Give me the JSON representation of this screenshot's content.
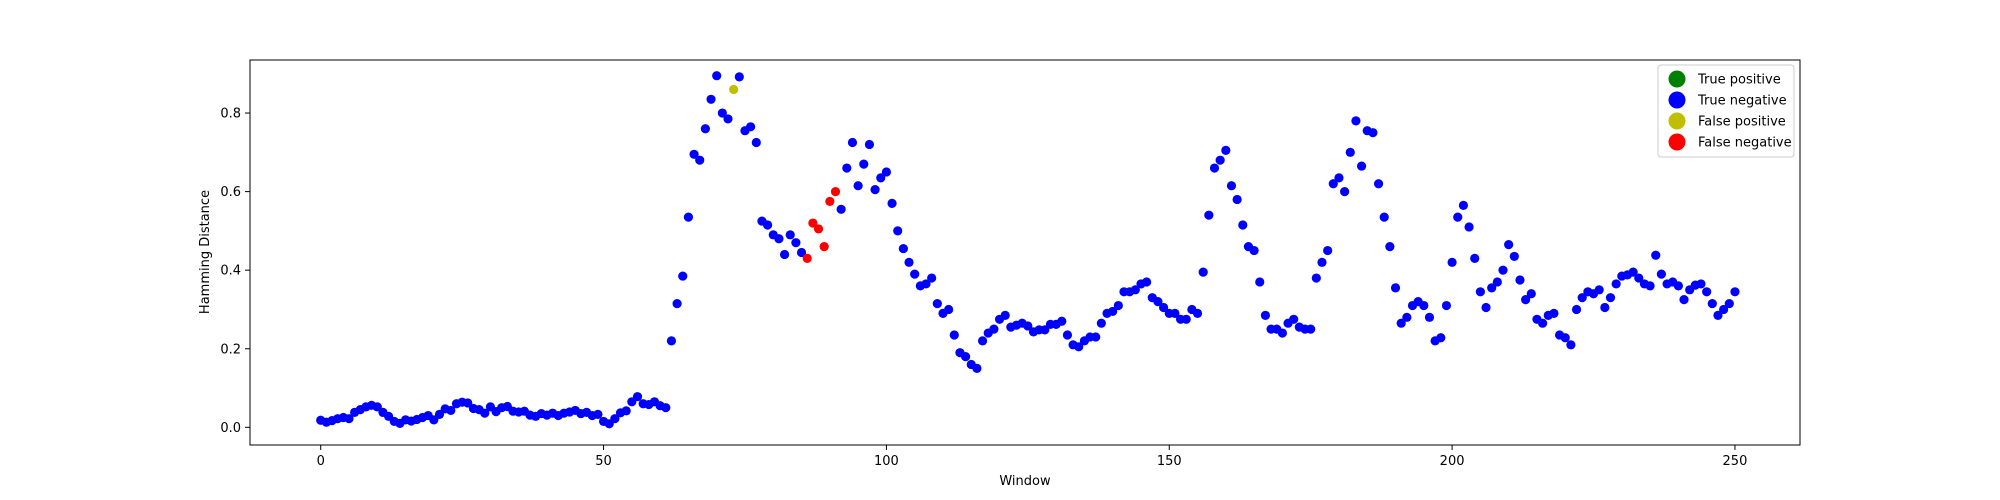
{
  "chart_data": {
    "type": "scatter",
    "title": "",
    "xlabel": "Window",
    "ylabel": "Hamming Distance",
    "xlim": [
      -12.5,
      261.5
    ],
    "ylim": [
      -0.045,
      0.935
    ],
    "xticks": [
      0,
      50,
      100,
      150,
      200,
      250
    ],
    "yticks": [
      0.0,
      0.2,
      0.4,
      0.6,
      0.8
    ],
    "grid": false,
    "legend_position": "top-right",
    "classes": [
      {
        "name": "True positive",
        "color": "#008000"
      },
      {
        "name": "True negative",
        "color": "#0000ff"
      },
      {
        "name": "False positive",
        "color": "#bfbf00"
      },
      {
        "name": "False negative",
        "color": "#ff0000"
      }
    ],
    "point_classes": {
      "73": 2,
      "86": 3,
      "87": 3,
      "88": 3,
      "89": 3,
      "90": 3,
      "91": 3
    },
    "y": [
      0.018,
      0.013,
      0.017,
      0.022,
      0.025,
      0.022,
      0.038,
      0.045,
      0.052,
      0.056,
      0.052,
      0.038,
      0.028,
      0.015,
      0.01,
      0.019,
      0.016,
      0.02,
      0.025,
      0.03,
      0.019,
      0.033,
      0.047,
      0.043,
      0.06,
      0.064,
      0.062,
      0.048,
      0.045,
      0.036,
      0.052,
      0.04,
      0.05,
      0.053,
      0.041,
      0.039,
      0.041,
      0.031,
      0.028,
      0.035,
      0.031,
      0.036,
      0.03,
      0.036,
      0.039,
      0.043,
      0.035,
      0.038,
      0.03,
      0.033,
      0.015,
      0.009,
      0.022,
      0.037,
      0.042,
      0.065,
      0.078,
      0.06,
      0.058,
      0.065,
      0.055,
      0.05,
      0.22,
      0.315,
      0.385,
      0.535,
      0.695,
      0.68,
      0.76,
      0.835,
      0.895,
      0.8,
      0.785,
      0.86,
      0.892,
      0.755,
      0.765,
      0.725,
      0.525,
      0.515,
      0.49,
      0.48,
      0.44,
      0.49,
      0.47,
      0.445,
      0.43,
      0.52,
      0.505,
      0.46,
      0.575,
      0.6,
      0.555,
      0.66,
      0.725,
      0.615,
      0.67,
      0.72,
      0.605,
      0.635,
      0.65,
      0.57,
      0.5,
      0.455,
      0.42,
      0.39,
      0.36,
      0.365,
      0.38,
      0.315,
      0.29,
      0.3,
      0.235,
      0.19,
      0.18,
      0.16,
      0.15,
      0.22,
      0.24,
      0.25,
      0.275,
      0.285,
      0.255,
      0.26,
      0.265,
      0.258,
      0.243,
      0.248,
      0.248,
      0.262,
      0.262,
      0.27,
      0.235,
      0.21,
      0.205,
      0.22,
      0.23,
      0.23,
      0.265,
      0.29,
      0.295,
      0.31,
      0.345,
      0.345,
      0.35,
      0.365,
      0.37,
      0.33,
      0.32,
      0.305,
      0.29,
      0.29,
      0.275,
      0.275,
      0.3,
      0.29,
      0.395,
      0.54,
      0.66,
      0.68,
      0.705,
      0.615,
      0.58,
      0.515,
      0.46,
      0.45,
      0.37,
      0.285,
      0.25,
      0.25,
      0.24,
      0.265,
      0.275,
      0.255,
      0.25,
      0.25,
      0.38,
      0.42,
      0.45,
      0.62,
      0.635,
      0.6,
      0.7,
      0.78,
      0.665,
      0.755,
      0.75,
      0.62,
      0.535,
      0.46,
      0.355,
      0.265,
      0.28,
      0.31,
      0.32,
      0.31,
      0.28,
      0.22,
      0.228,
      0.31,
      0.42,
      0.535,
      0.565,
      0.51,
      0.43,
      0.345,
      0.305,
      0.355,
      0.37,
      0.4,
      0.465,
      0.435,
      0.375,
      0.325,
      0.34,
      0.275,
      0.265,
      0.285,
      0.29,
      0.235,
      0.228,
      0.21,
      0.3,
      0.33,
      0.345,
      0.34,
      0.35,
      0.305,
      0.33,
      0.365,
      0.385,
      0.388,
      0.395,
      0.38,
      0.365,
      0.36,
      0.438,
      0.39,
      0.365,
      0.37,
      0.36,
      0.325,
      0.35,
      0.362,
      0.365,
      0.345,
      0.315,
      0.285,
      0.3,
      0.315,
      0.345
    ]
  }
}
